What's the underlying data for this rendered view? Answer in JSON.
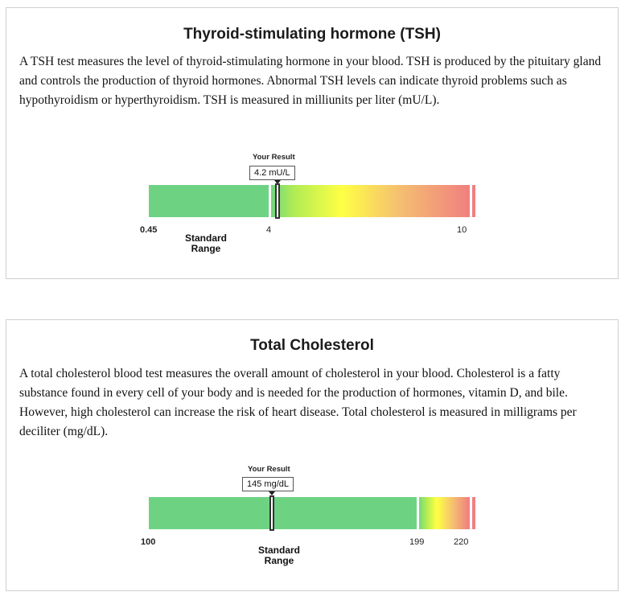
{
  "tsh": {
    "title": "Thyroid-stimulating hormone (TSH)",
    "description": "A TSH test measures the level of thyroid-stimulating hormone in your blood. TSH is produced by the pituitary gland and controls the production of thyroid hormones. Abnormal TSH levels can indicate thyroid problems such as hypothyroidism or hyperthyroidism. TSH is measured in milliunits per liter (mU/L).",
    "result_label": "Your Result",
    "result_value": "4.2 mU/L",
    "tick_min": "0.45",
    "tick_mid": "4",
    "tick_max": "10",
    "range_line1": "Standard",
    "range_line2": "Range"
  },
  "cholesterol": {
    "title": "Total Cholesterol",
    "description": "A total cholesterol blood test measures the overall amount of cholesterol in your blood. Cholesterol is a fatty substance found in every cell of your body and is needed for the production of hormones, vitamin D, and bile. However, high cholesterol can increase the risk of heart disease. Total cholesterol is measured in milligrams per deciliter (mg/dL).",
    "result_label": "Your Result",
    "result_value": "145 mg/dL",
    "tick_min": "100",
    "tick_mid": "199",
    "tick_max": "220",
    "range_line1": "Standard",
    "range_line2": "Range"
  },
  "colors": {
    "normal": "#6dd383",
    "warning": "#ffff44",
    "high": "#f08080"
  }
}
